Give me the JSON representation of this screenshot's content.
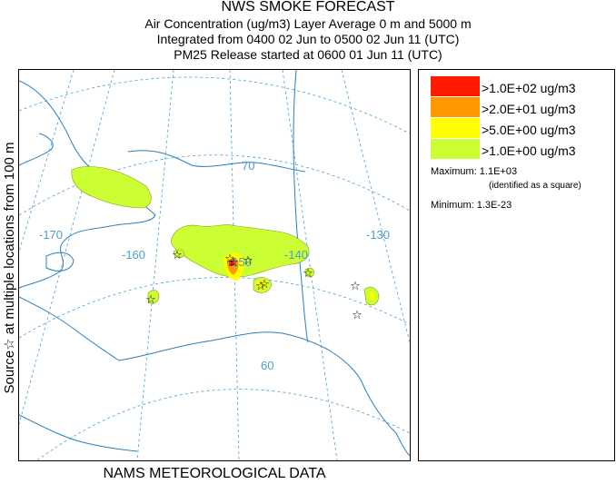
{
  "title": {
    "line1": "NWS SMOKE FORECAST",
    "line2": "Air Concentration (ug/m3) Layer Average     0 m and  5000 m",
    "line3": "Integrated from 0400 02 Jun to 0500 02 Jun 11 (UTC)",
    "line4": "PM25 Release started at 0600 01 Jun 11 (UTC)"
  },
  "side_label": "Source☆  at multiple locations    from   100 m",
  "footer": "NAMS METEOROLOGICAL DATA",
  "legend": {
    "items": [
      {
        "label": ">1.0E+02 ug/m3",
        "color": "#ff1a00"
      },
      {
        "label": ">2.0E+01 ug/m3",
        "color": "#ff9900"
      },
      {
        "label": ">5.0E+00 ug/m3",
        "color": "#ffff00"
      },
      {
        "label": ">1.0E+00 ug/m3",
        "color": "#ccff33"
      }
    ],
    "maximum": "Maximum: 1.1E+03",
    "maximum_note": "(identified as a square)",
    "minimum": "Minimum: 1.3E-23"
  },
  "map": {
    "longitude_labels": [
      "-170",
      "-160",
      "-150",
      "-140",
      "-130"
    ],
    "latitude_labels": [
      "70",
      "60"
    ],
    "colors": {
      "graticule": "#4aa0d0",
      "coast": "#2a7fbf",
      "plume_low": "#ccff33",
      "plume_mid": "#ffff00",
      "plume_high": "#ff9900",
      "plume_max": "#ff1a00"
    }
  }
}
